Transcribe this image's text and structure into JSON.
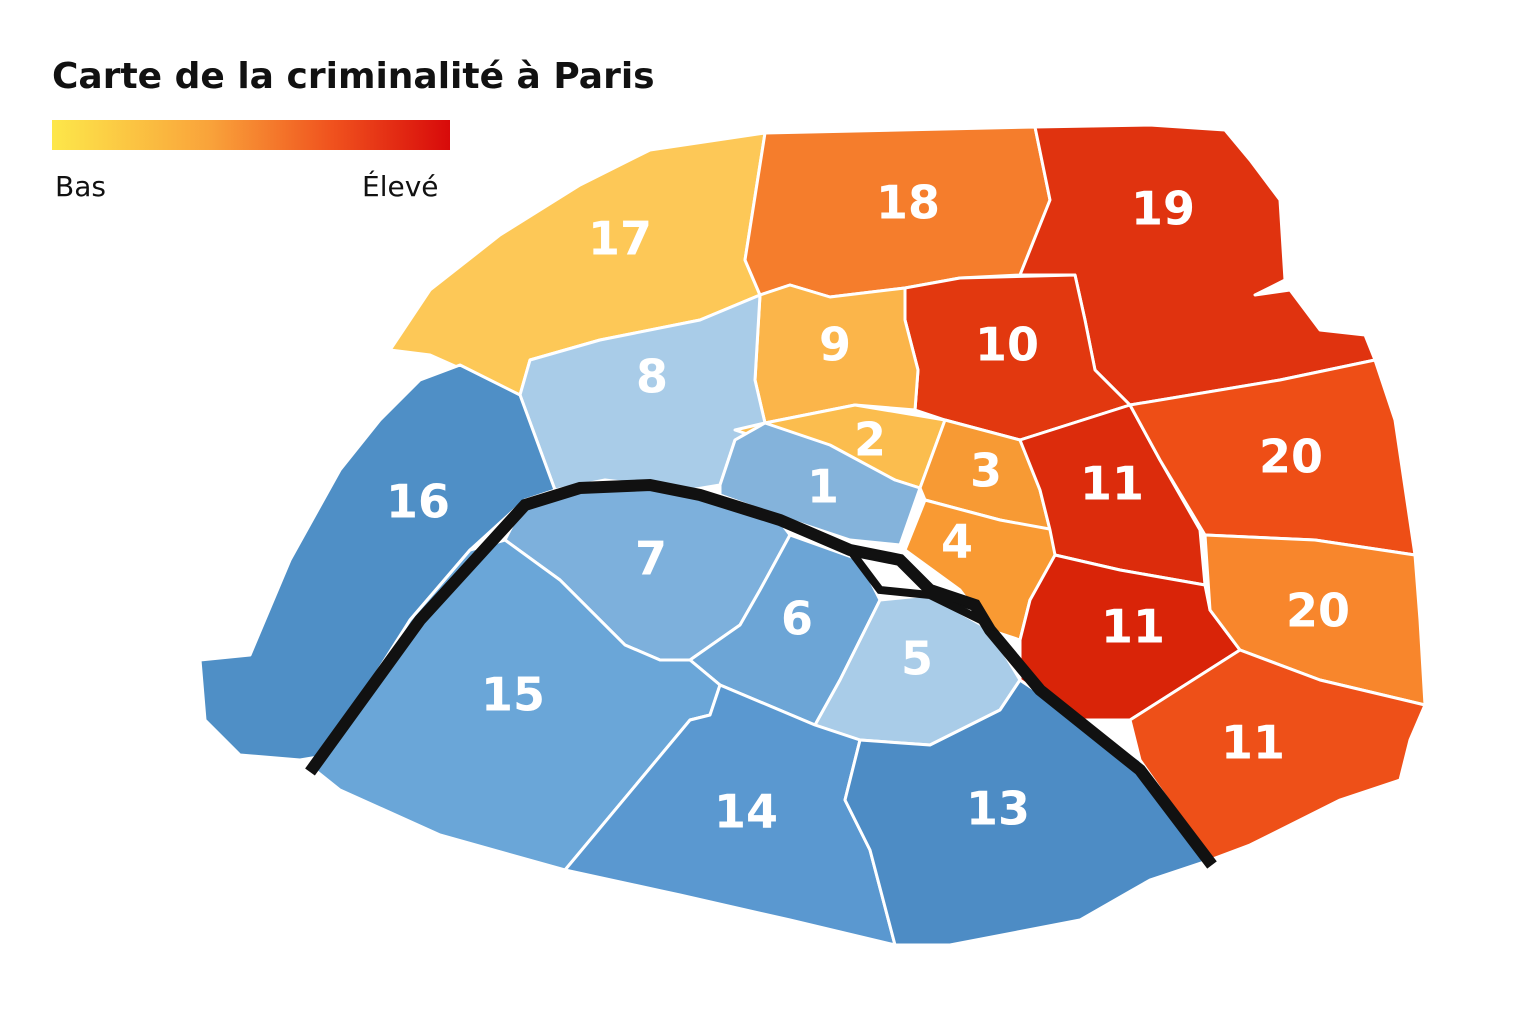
{
  "title": "Carte de la criminalité à Paris",
  "legend": {
    "low": "Bas",
    "high": "Élevé"
  },
  "districts": [
    {
      "label": "17",
      "color": "#fdc857"
    },
    {
      "label": "18",
      "color": "#f57d2c"
    },
    {
      "label": "19",
      "color": "#e0330f"
    },
    {
      "label": "10",
      "color": "#e2380f"
    },
    {
      "label": "9",
      "color": "#fbb54a"
    },
    {
      "label": "8",
      "color": "#a9cce8"
    },
    {
      "label": "16",
      "color": "#4f8fc6"
    },
    {
      "label": "2",
      "color": "#fbbd4e"
    },
    {
      "label": "1",
      "color": "#84b3db"
    },
    {
      "label": "3",
      "color": "#f79a34"
    },
    {
      "label": "4",
      "color": "#f99a33"
    },
    {
      "label": "7",
      "color": "#7db0dc"
    },
    {
      "label": "6",
      "color": "#6ca5d6"
    },
    {
      "label": "5",
      "color": "#a9cce8"
    },
    {
      "label": "15",
      "color": "#6aa6d8"
    },
    {
      "label": "14",
      "color": "#5a98d0"
    },
    {
      "label": "13",
      "color": "#4d8cc5"
    },
    {
      "label": "11",
      "color": "#dc2c0c"
    },
    {
      "label": "20",
      "color": "#ee4e16"
    },
    {
      "label": "11",
      "color": "#d92408"
    },
    {
      "label": "20",
      "color": "#f8862c"
    },
    {
      "label": "11",
      "color": "#ee5018"
    }
  ]
}
